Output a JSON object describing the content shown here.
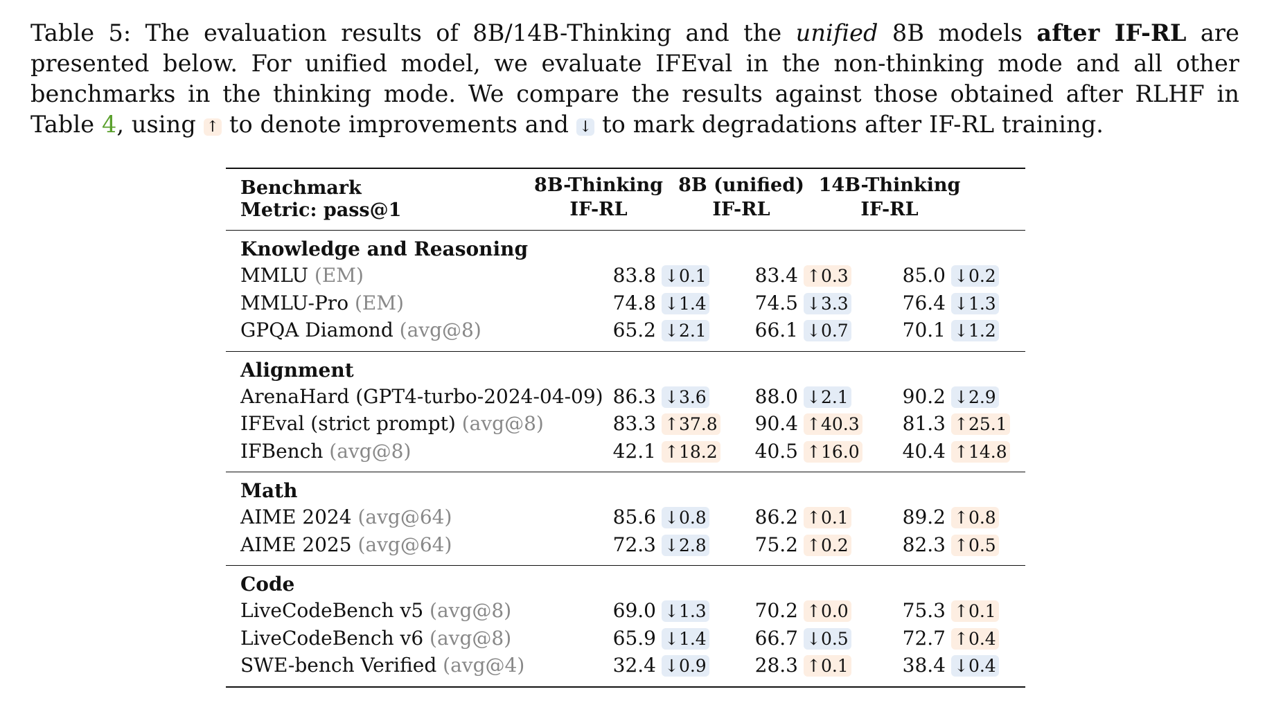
{
  "caption": {
    "p1": "Table 5: The evaluation results of 8B/14B-Thinking and the ",
    "p2": "unified",
    "p3": " 8B models ",
    "p4": "after IF-RL",
    "p5": " are presented below. For unified model, we evaluate IFEval in the non-thinking mode and all other benchmarks in the thinking mode. We compare the results against those obtained after RLHF in Table ",
    "ref": "4",
    "p6": ", using ",
    "up_symbol": "↑",
    "p7": " to denote improvements and ",
    "down_symbol": "↓",
    "p8": " to mark degradations after IF-RL training."
  },
  "table": {
    "header": {
      "bench_line1": "Benchmark",
      "bench_line2": "Metric: pass@1",
      "cols": [
        {
          "line1": "8B-Thinking",
          "line2": "IF-RL"
        },
        {
          "line1": "8B (unified)",
          "line2": "IF-RL"
        },
        {
          "line1": "14B-Thinking",
          "line2": "IF-RL"
        }
      ]
    },
    "sections": [
      {
        "title": "Knowledge and Reasoning",
        "rows": [
          {
            "name": "MMLU",
            "paren": "(EM)",
            "cells": [
              {
                "val": "83.8",
                "delta": "↓0.1",
                "dir": "down"
              },
              {
                "val": "83.4",
                "delta": "↑0.3",
                "dir": "up"
              },
              {
                "val": "85.0",
                "delta": "↓0.2",
                "dir": "down"
              }
            ]
          },
          {
            "name": "MMLU-Pro",
            "paren": "(EM)",
            "cells": [
              {
                "val": "74.8",
                "delta": "↓1.4",
                "dir": "down"
              },
              {
                "val": "74.5",
                "delta": "↓3.3",
                "dir": "down"
              },
              {
                "val": "76.4",
                "delta": "↓1.3",
                "dir": "down"
              }
            ]
          },
          {
            "name": "GPQA Diamond",
            "paren": "(avg@8)",
            "cells": [
              {
                "val": "65.2",
                "delta": "↓2.1",
                "dir": "down"
              },
              {
                "val": "66.1",
                "delta": "↓0.7",
                "dir": "down"
              },
              {
                "val": "70.1",
                "delta": "↓1.2",
                "dir": "down"
              }
            ]
          }
        ]
      },
      {
        "title": "Alignment",
        "rows": [
          {
            "name": "ArenaHard (GPT4-turbo-2024-04-09)",
            "paren": "",
            "cells": [
              {
                "val": "86.3",
                "delta": "↓3.6",
                "dir": "down"
              },
              {
                "val": "88.0",
                "delta": "↓2.1",
                "dir": "down"
              },
              {
                "val": "90.2",
                "delta": "↓2.9",
                "dir": "down"
              }
            ]
          },
          {
            "name": "IFEval (strict prompt)",
            "paren": "(avg@8)",
            "cells": [
              {
                "val": "83.3",
                "delta": "↑37.8",
                "dir": "up"
              },
              {
                "val": "90.4",
                "delta": "↑40.3",
                "dir": "up"
              },
              {
                "val": "81.3",
                "delta": "↑25.1",
                "dir": "up"
              }
            ]
          },
          {
            "name": "IFBench",
            "paren": "(avg@8)",
            "cells": [
              {
                "val": "42.1",
                "delta": "↑18.2",
                "dir": "up"
              },
              {
                "val": "40.5",
                "delta": "↑16.0",
                "dir": "up"
              },
              {
                "val": "40.4",
                "delta": "↑14.8",
                "dir": "up"
              }
            ]
          }
        ]
      },
      {
        "title": "Math",
        "rows": [
          {
            "name": "AIME 2024",
            "paren": "(avg@64)",
            "cells": [
              {
                "val": "85.6",
                "delta": "↓0.8",
                "dir": "down"
              },
              {
                "val": "86.2",
                "delta": "↑0.1",
                "dir": "up"
              },
              {
                "val": "89.2",
                "delta": "↑0.8",
                "dir": "up"
              }
            ]
          },
          {
            "name": "AIME 2025",
            "paren": "(avg@64)",
            "cells": [
              {
                "val": "72.3",
                "delta": "↓2.8",
                "dir": "down"
              },
              {
                "val": "75.2",
                "delta": "↑0.2",
                "dir": "up"
              },
              {
                "val": "82.3",
                "delta": "↑0.5",
                "dir": "up"
              }
            ]
          }
        ]
      },
      {
        "title": "Code",
        "rows": [
          {
            "name": "LiveCodeBench v5",
            "paren": "(avg@8)",
            "cells": [
              {
                "val": "69.0",
                "delta": "↓1.3",
                "dir": "down"
              },
              {
                "val": "70.2",
                "delta": "↑0.0",
                "dir": "up"
              },
              {
                "val": "75.3",
                "delta": "↑0.1",
                "dir": "up"
              }
            ]
          },
          {
            "name": "LiveCodeBench v6",
            "paren": "(avg@8)",
            "cells": [
              {
                "val": "65.9",
                "delta": "↓1.4",
                "dir": "down"
              },
              {
                "val": "66.7",
                "delta": "↓0.5",
                "dir": "down"
              },
              {
                "val": "72.7",
                "delta": "↑0.4",
                "dir": "up"
              }
            ]
          },
          {
            "name": "SWE-bench Verified",
            "paren": "(avg@4)",
            "cells": [
              {
                "val": "32.4",
                "delta": "↓0.9",
                "dir": "down"
              },
              {
                "val": "28.3",
                "delta": "↑0.1",
                "dir": "up"
              },
              {
                "val": "38.4",
                "delta": "↓0.4",
                "dir": "down"
              }
            ]
          }
        ]
      }
    ]
  }
}
